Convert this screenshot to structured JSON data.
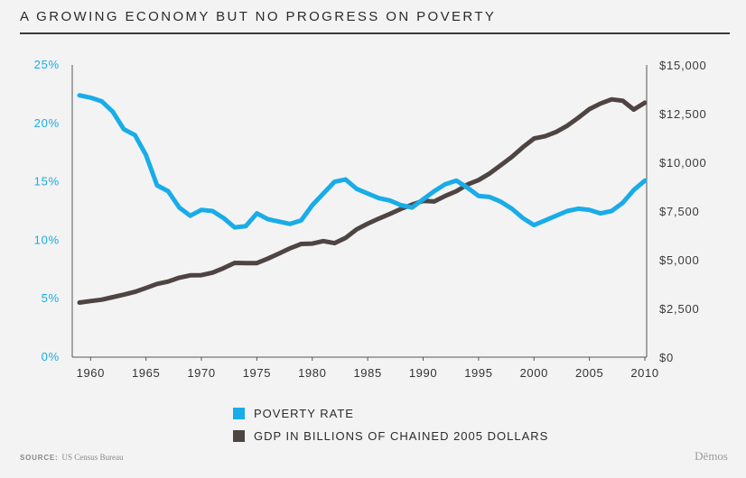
{
  "title": "A GROWING ECONOMY BUT NO PROGRESS ON POVERTY",
  "source_label": "SOURCE:",
  "source_value": "US Census Bureau",
  "brand": "Dēmos",
  "legend": [
    {
      "label": "POVERTY RATE",
      "color": "#19ace8"
    },
    {
      "label": "GDP IN BILLIONS OF CHAINED 2005 DOLLARS",
      "color": "#4e4441"
    }
  ],
  "chart_data": {
    "type": "line",
    "title": "A GROWING ECONOMY BUT NO PROGRESS ON POVERTY",
    "x": [
      1959,
      1960,
      1961,
      1962,
      1963,
      1964,
      1965,
      1966,
      1967,
      1968,
      1969,
      1970,
      1971,
      1972,
      1973,
      1974,
      1975,
      1976,
      1977,
      1978,
      1979,
      1980,
      1981,
      1982,
      1983,
      1984,
      1985,
      1986,
      1987,
      1988,
      1989,
      1990,
      1991,
      1992,
      1993,
      1994,
      1995,
      1996,
      1997,
      1998,
      1999,
      2000,
      2001,
      2002,
      2003,
      2004,
      2005,
      2006,
      2007,
      2008,
      2009,
      2010
    ],
    "xlim": [
      1958,
      2010
    ],
    "x_ticks": [
      "1960",
      "1965",
      "1970",
      "1975",
      "1980",
      "1985",
      "1990",
      "1995",
      "2000",
      "2005",
      "2010"
    ],
    "y_left": {
      "ylim": [
        0,
        25
      ],
      "ticks": [
        "0%",
        "5%",
        "10%",
        "15%",
        "20%",
        "25%"
      ]
    },
    "y_right": {
      "ylim": [
        0,
        15000
      ],
      "ticks": [
        "$0",
        "$2,500",
        "$5,000",
        "$7,500",
        "$10,000",
        "$12,500",
        "$15,000"
      ]
    },
    "series": [
      {
        "name": "POVERTY RATE",
        "axis": "left",
        "color": "#19ace8",
        "values": [
          22.4,
          22.2,
          21.9,
          21.0,
          19.5,
          19.0,
          17.3,
          14.7,
          14.2,
          12.8,
          12.1,
          12.6,
          12.5,
          11.9,
          11.1,
          11.2,
          12.3,
          11.8,
          11.6,
          11.4,
          11.7,
          13.0,
          14.0,
          15.0,
          15.2,
          14.4,
          14.0,
          13.6,
          13.4,
          13.0,
          12.8,
          13.5,
          14.2,
          14.8,
          15.1,
          14.5,
          13.8,
          13.7,
          13.3,
          12.7,
          11.9,
          11.3,
          11.7,
          12.1,
          12.5,
          12.7,
          12.6,
          12.3,
          12.5,
          13.2,
          14.3,
          15.1
        ]
      },
      {
        "name": "GDP IN BILLIONS OF CHAINED 2005 DOLLARS",
        "axis": "right",
        "color": "#4e4441",
        "values": [
          2800,
          2880,
          2950,
          3080,
          3210,
          3350,
          3550,
          3760,
          3880,
          4080,
          4200,
          4210,
          4340,
          4570,
          4840,
          4830,
          4830,
          5060,
          5320,
          5590,
          5810,
          5830,
          5960,
          5850,
          6120,
          6560,
          6850,
          7110,
          7350,
          7610,
          7830,
          8020,
          7990,
          8280,
          8520,
          8860,
          9090,
          9430,
          9850,
          10280,
          10780,
          11220,
          11340,
          11560,
          11880,
          12290,
          12730,
          13020,
          13230,
          13160,
          12710,
          13060
        ]
      }
    ],
    "grid": false,
    "legend_position": "bottom-center"
  }
}
